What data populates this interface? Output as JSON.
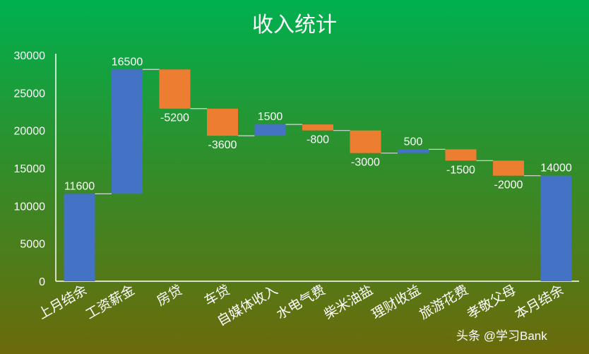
{
  "chart_data": {
    "type": "waterfall",
    "title": "收入统计",
    "xlabel": "",
    "ylabel": "",
    "ylim": [
      0,
      30000
    ],
    "yticks": [
      0,
      5000,
      10000,
      15000,
      20000,
      25000,
      30000
    ],
    "categories": [
      "上月结余",
      "工资薪金",
      "房贷",
      "车贷",
      "自媒体收入",
      "水电气费",
      "柴米油盐",
      "理财收益",
      "旅游花费",
      "孝敬父母",
      "本月结余"
    ],
    "values": [
      11600,
      16500,
      -5200,
      -3600,
      1500,
      -800,
      -3000,
      500,
      -1500,
      -2000,
      14000
    ],
    "data_labels": [
      "11600",
      "16500",
      "-5200",
      "-3600",
      "1500",
      "-800",
      "-3000",
      "500",
      "-1500",
      "-2000",
      "14000"
    ],
    "total_indices": [
      0,
      10
    ],
    "colors": {
      "increase": "#4472c4",
      "decrease": "#ed7d31",
      "total": "#4472c4",
      "connector": "#d9d9d9",
      "axis": "#ffffff"
    },
    "grid": false,
    "legend": "none"
  },
  "watermark": "头条 @学习Bank"
}
